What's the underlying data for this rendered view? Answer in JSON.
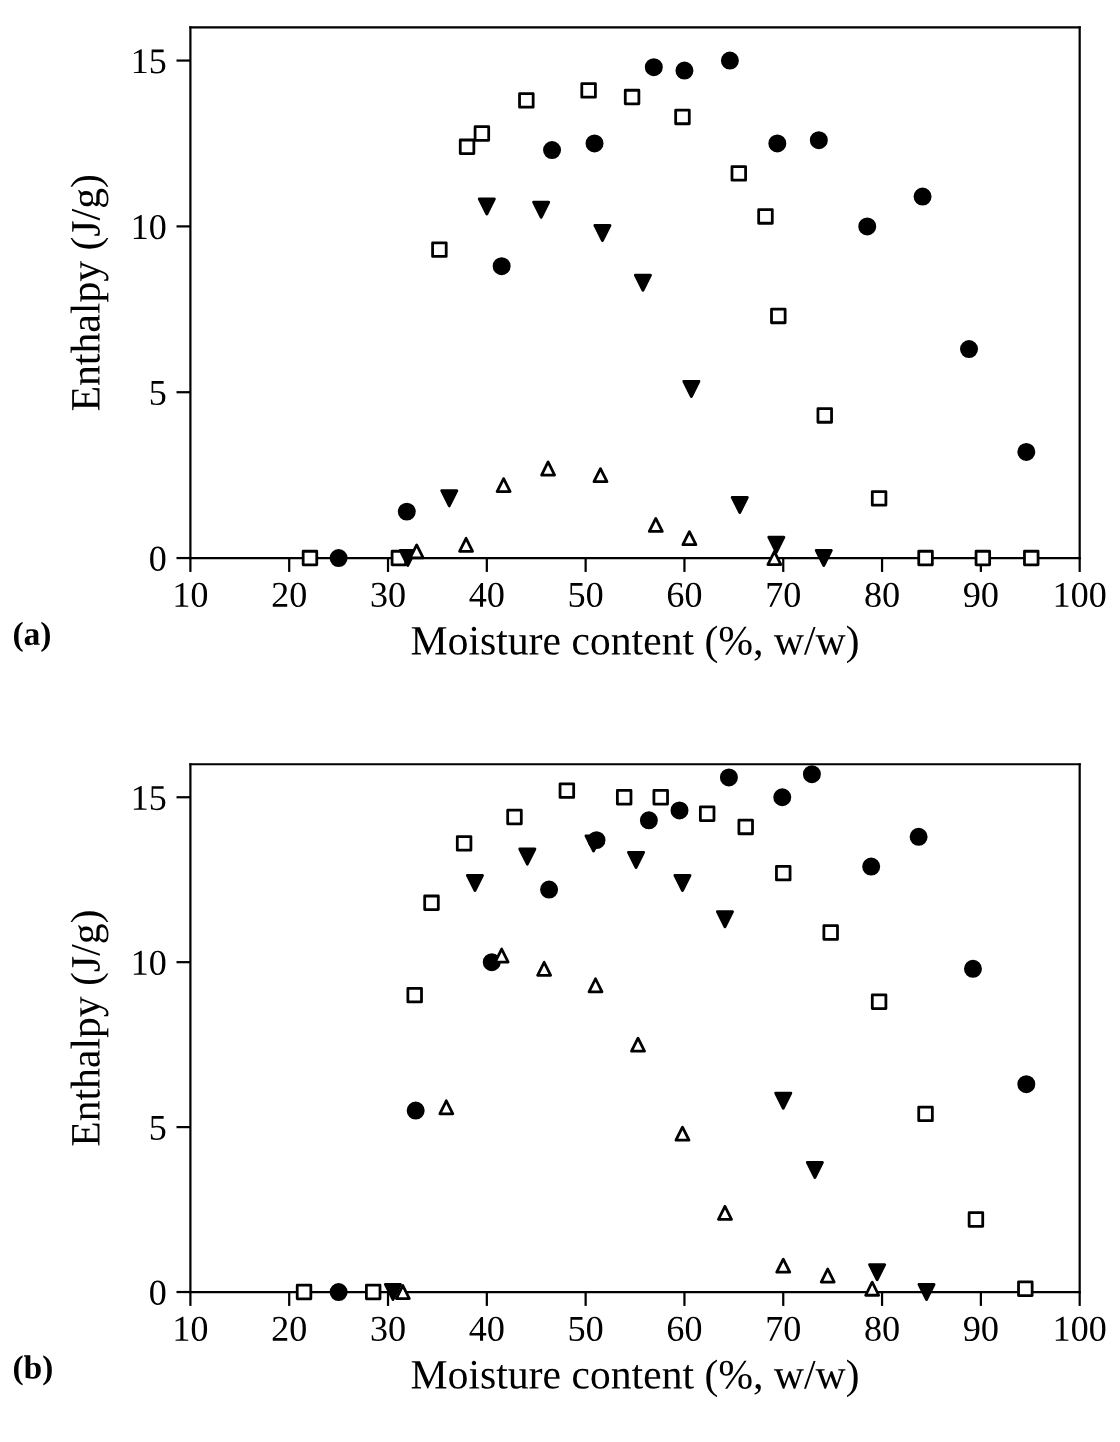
{
  "chart_data": [
    {
      "type": "scatter",
      "xlabel": "Moisture content (%, w/w)",
      "ylabel": "Enthalpy (J/g)",
      "annotations": [
        "(a)"
      ],
      "xlim": [
        10,
        100
      ],
      "xticks": [
        10,
        20,
        30,
        40,
        50,
        60,
        70,
        80,
        90,
        100
      ],
      "ylim": [
        0,
        16
      ],
      "yticks": [
        0,
        5,
        10,
        15
      ],
      "grid": false,
      "legend": false,
      "series": [
        {
          "color": "#000000",
          "marker": "circle",
          "x": [
            25.0,
            31.9,
            41.5,
            46.6,
            50.9,
            56.9,
            60.0,
            64.6,
            69.4,
            73.6,
            78.5,
            84.1,
            88.8,
            94.6
          ],
          "values": [
            0,
            1.4,
            8.8,
            12.3,
            12.5,
            14.8,
            14.7,
            15.0,
            12.5,
            12.6,
            10.0,
            10.9,
            6.3,
            3.2
          ]
        },
        {
          "color": "#000000",
          "marker": "square",
          "x": [
            22.1,
            31.1,
            35.2,
            38.0,
            39.5,
            44.0,
            50.3,
            54.7,
            59.8,
            65.5,
            68.2,
            69.5,
            74.2,
            79.7,
            84.4,
            90.2,
            95.1
          ],
          "values": [
            0,
            0,
            9.3,
            12.4,
            12.8,
            13.8,
            14.1,
            13.9,
            13.3,
            11.6,
            10.3,
            7.3,
            4.3,
            1.8,
            0,
            0,
            0
          ]
        },
        {
          "color": "#000000",
          "marker": "triangle_down",
          "x": [
            32.0,
            36.2,
            40.0,
            45.5,
            51.7,
            55.8,
            60.7,
            65.6,
            69.3,
            74.1
          ],
          "values": [
            0,
            1.8,
            10.6,
            10.5,
            9.8,
            8.3,
            5.1,
            1.6,
            0.4,
            0
          ]
        },
        {
          "color": "#000000",
          "marker": "triangle",
          "x": [
            32.9,
            37.9,
            41.7,
            46.2,
            51.5,
            57.1,
            60.5,
            69.1
          ],
          "values": [
            0.2,
            0.4,
            2.2,
            2.7,
            2.5,
            1.0,
            0.6,
            0
          ]
        }
      ]
    },
    {
      "type": "scatter",
      "xlabel": "Moisture content (%, w/w)",
      "ylabel": "Enthalpy (J/g)",
      "annotations": [
        "(b)"
      ],
      "xlim": [
        10,
        100
      ],
      "xticks": [
        10,
        20,
        30,
        40,
        50,
        60,
        70,
        80,
        90,
        100
      ],
      "ylim": [
        0,
        16
      ],
      "yticks": [
        0,
        5,
        10,
        15
      ],
      "grid": false,
      "legend": false,
      "series": [
        {
          "color": "#000000",
          "marker": "circle",
          "x": [
            25.0,
            32.8,
            40.5,
            46.3,
            51.1,
            56.4,
            59.5,
            64.5,
            69.9,
            72.9,
            78.9,
            83.7,
            89.2,
            94.6
          ],
          "values": [
            0,
            5.5,
            10.0,
            12.2,
            13.7,
            14.3,
            14.6,
            15.6,
            15.0,
            15.7,
            12.9,
            13.8,
            9.8,
            6.3
          ]
        },
        {
          "color": "#000000",
          "marker": "square",
          "x": [
            21.5,
            28.5,
            32.7,
            34.4,
            37.7,
            42.8,
            48.1,
            53.9,
            57.6,
            62.3,
            66.2,
            70.0,
            74.8,
            79.7,
            84.4,
            89.5,
            94.5
          ],
          "values": [
            0,
            0,
            9.0,
            11.8,
            13.6,
            14.4,
            15.2,
            15.0,
            15.0,
            14.5,
            14.1,
            12.7,
            10.9,
            8.8,
            5.4,
            2.2,
            0.1
          ]
        },
        {
          "color": "#000000",
          "marker": "triangle_down",
          "x": [
            30.5,
            38.8,
            44.1,
            50.8,
            55.1,
            59.8,
            64.1,
            70.0,
            73.2,
            79.5,
            84.5
          ],
          "values": [
            0,
            12.4,
            13.2,
            13.6,
            13.1,
            12.4,
            11.3,
            5.8,
            3.7,
            0.6,
            0
          ]
        },
        {
          "color": "#000000",
          "marker": "triangle",
          "x": [
            31.5,
            35.9,
            41.5,
            45.8,
            51.0,
            55.3,
            59.8,
            64.1,
            70.0,
            74.5,
            79.0
          ],
          "values": [
            0,
            5.6,
            10.2,
            9.8,
            9.3,
            7.5,
            4.8,
            2.4,
            0.8,
            0.5,
            0.1
          ]
        }
      ]
    }
  ]
}
